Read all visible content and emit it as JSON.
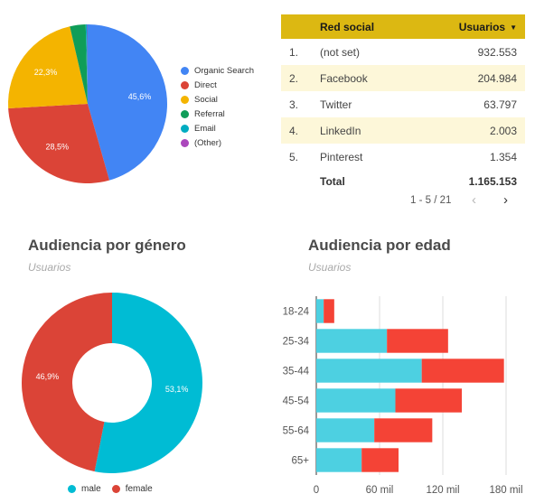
{
  "channels_chart": {
    "chart_data": {
      "type": "pie",
      "slices": [
        {
          "name": "Organic Search",
          "value": 45.6,
          "label": "45,6%",
          "color": "#4285f4"
        },
        {
          "name": "Direct",
          "value": 28.5,
          "label": "28,5%",
          "color": "#db4437"
        },
        {
          "name": "Social",
          "value": 22.3,
          "label": "22,3%",
          "color": "#f4b400"
        },
        {
          "name": "Referral",
          "value": 3.2,
          "label": "",
          "color": "#0f9d58"
        },
        {
          "name": "Email",
          "value": 0.3,
          "label": "",
          "color": "#00acc1"
        },
        {
          "name": "(Other)",
          "value": 0.1,
          "label": "",
          "color": "#ab47bc"
        }
      ],
      "legend": "right"
    }
  },
  "social_table": {
    "headers": {
      "name": "Red social",
      "value": "Usuarios",
      "sort_icon": "caret-down-icon"
    },
    "rows": [
      {
        "index": "1.",
        "name": "(not set)",
        "value": "932.553"
      },
      {
        "index": "2.",
        "name": "Facebook",
        "value": "204.984"
      },
      {
        "index": "3.",
        "name": "Twitter",
        "value": "63.797"
      },
      {
        "index": "4.",
        "name": "LinkedIn",
        "value": "2.003"
      },
      {
        "index": "5.",
        "name": "Pinterest",
        "value": "1.354"
      }
    ],
    "total_label": "Total",
    "total_value": "1.165.153",
    "pagination": "1 - 5 / 21",
    "header_color": "#dcb812"
  },
  "gender_section": {
    "title": "Audiencia por género",
    "subtitle": "Usuarios",
    "chart_data": {
      "type": "pie",
      "donut": true,
      "slices": [
        {
          "name": "male",
          "value": 53.1,
          "label": "53,1%",
          "color": "#00bcd4"
        },
        {
          "name": "female",
          "value": 46.9,
          "label": "46,9%",
          "color": "#db4437"
        }
      ],
      "legend": "bottom"
    }
  },
  "age_section": {
    "title": "Audiencia por edad",
    "subtitle": "Usuarios",
    "chart_data": {
      "type": "bar",
      "orientation": "horizontal",
      "stacked": true,
      "categories": [
        "18-24",
        "25-34",
        "35-44",
        "45-54",
        "55-64",
        "65+"
      ],
      "series": [
        {
          "name": "male",
          "color": "#4dd0e1",
          "values": [
            7,
            67,
            100,
            75,
            55,
            43
          ]
        },
        {
          "name": "female",
          "color": "#f44336",
          "values": [
            10,
            58,
            78,
            63,
            55,
            35
          ]
        }
      ],
      "xlim": [
        0,
        180
      ],
      "xticks": [
        0,
        60,
        120,
        180
      ],
      "xtick_labels": [
        "0",
        "60 mil",
        "120 mil",
        "180 mil"
      ],
      "grid": true
    }
  }
}
